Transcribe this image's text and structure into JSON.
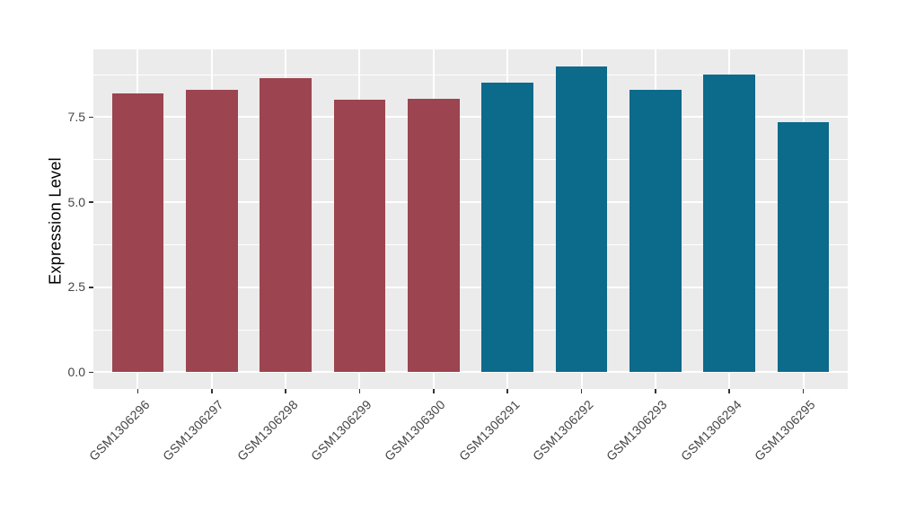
{
  "figure": {
    "background": "#FFFFFF",
    "panel_background": "#EBEBEB",
    "grid_color": "#FFFFFF",
    "tick_color": "#333333",
    "axis_text_color": "#454545",
    "axis_title_color": "#000000"
  },
  "chart_data": {
    "type": "bar",
    "title": "",
    "xlabel": "",
    "ylabel": "Expression Level",
    "categories": [
      "GSM1306296",
      "GSM1306297",
      "GSM1306298",
      "GSM1306299",
      "GSM1306300",
      "GSM1306291",
      "GSM1306292",
      "GSM1306293",
      "GSM1306294",
      "GSM1306295"
    ],
    "values": [
      8.2,
      8.3,
      8.65,
      8.0,
      8.05,
      8.5,
      9.0,
      8.3,
      8.75,
      7.35
    ],
    "bar_colors": [
      "#9C4450",
      "#9C4450",
      "#9C4450",
      "#9C4450",
      "#9C4450",
      "#0C6A8B",
      "#0C6A8B",
      "#0C6A8B",
      "#0C6A8B",
      "#0C6A8B"
    ],
    "group_colors": {
      "left_group": "#9C4450",
      "right_group": "#0C6A8B"
    },
    "ylim": [
      -0.49,
      9.49
    ],
    "yticks_major": [
      0.0,
      2.5,
      5.0,
      7.5
    ],
    "ytick_labels": [
      "0.0",
      "2.5",
      "5.0",
      "7.5"
    ],
    "yticks_minor": [
      1.25,
      3.75,
      6.25,
      8.75
    ],
    "bar_rel_width": 0.7,
    "x_tick_rotation_deg": -45,
    "grid": true,
    "legend_position": "none"
  }
}
